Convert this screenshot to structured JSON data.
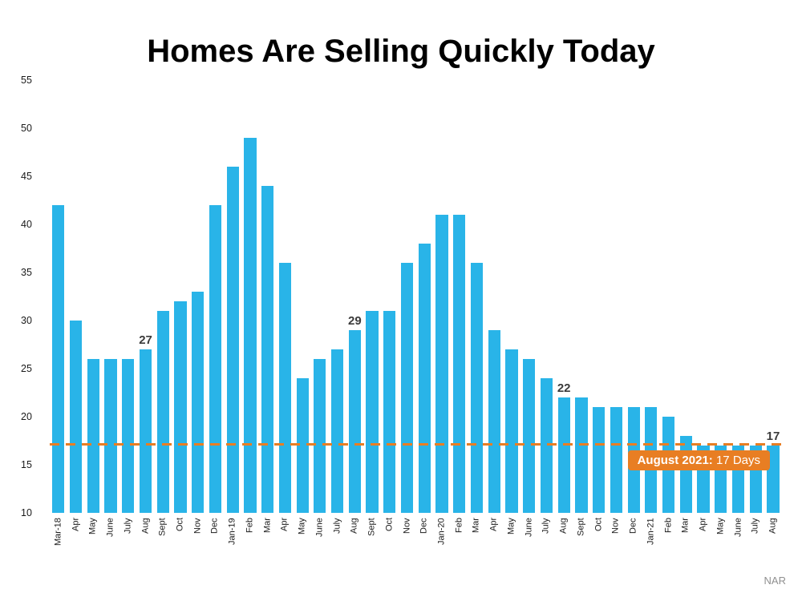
{
  "source": "NAR",
  "chart_data": {
    "type": "bar",
    "title": "Homes Are Selling Quickly Today",
    "xlabel": "",
    "ylabel": "",
    "ylim": [
      10,
      55
    ],
    "yticks": [
      10,
      15,
      20,
      25,
      30,
      35,
      40,
      45,
      50,
      55
    ],
    "grid": false,
    "legend_position": "none",
    "bar_color": "#29B4E8",
    "categories": [
      "Mar-18",
      "Apr",
      "May",
      "June",
      "July",
      "Aug",
      "Sept",
      "Oct",
      "Nov",
      "Dec",
      "Jan-19",
      "Feb",
      "Mar",
      "Apr",
      "May",
      "June",
      "July",
      "Aug",
      "Sept",
      "Oct",
      "Nov",
      "Dec",
      "Jan-20",
      "Feb",
      "Mar",
      "Apr",
      "May",
      "June",
      "July",
      "Aug",
      "Sept",
      "Oct",
      "Nov",
      "Dec",
      "Jan-21",
      "Feb",
      "Mar",
      "Apr",
      "May",
      "June",
      "July",
      "Aug"
    ],
    "values": [
      42,
      30,
      26,
      26,
      26,
      27,
      31,
      32,
      33,
      42,
      46,
      49,
      44,
      36,
      24,
      26,
      27,
      29,
      31,
      31,
      36,
      38,
      41,
      41,
      36,
      29,
      27,
      26,
      24,
      22,
      22,
      21,
      21,
      21,
      21,
      20,
      18,
      17,
      17,
      17,
      17,
      17
    ],
    "labeled_bars": [
      {
        "index": 5,
        "value": 27
      },
      {
        "index": 17,
        "value": 29
      },
      {
        "index": 29,
        "value": 22
      },
      {
        "index": 41,
        "value": 17
      }
    ],
    "reference_line": {
      "value": 17.2,
      "color": "#E87E23",
      "style": "dashed"
    },
    "annotation": {
      "text_bold": "August 2021:",
      "text": "17 Days",
      "bg_color": "#E87E23",
      "text_color": "#FFFFFF"
    }
  }
}
